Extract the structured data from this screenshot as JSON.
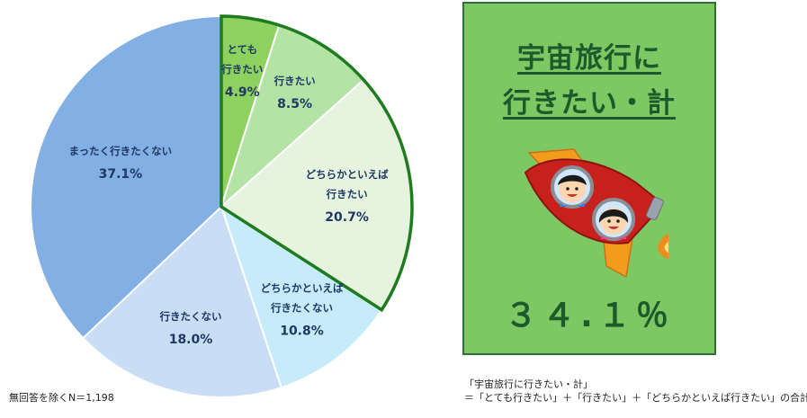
{
  "chart_data": {
    "type": "pie",
    "title": "",
    "start": "top",
    "direction": "clockwise",
    "slices": [
      {
        "label": [
          "とても",
          "行きたい"
        ],
        "value": 4.9,
        "value_label": "4.9%",
        "color": "#8dd15f"
      },
      {
        "label": [
          "行きたい"
        ],
        "value": 8.5,
        "value_label": "8.5%",
        "color": "#b4e3a6"
      },
      {
        "label": [
          "どちらかといえば",
          "行きたい"
        ],
        "value": 20.7,
        "value_label": "20.7%",
        "color": "#e6f4df"
      },
      {
        "label": [
          "どちらかといえば",
          "行きたくない"
        ],
        "value": 10.8,
        "value_label": "10.8%",
        "color": "#c6ecfb"
      },
      {
        "label": [
          "行きたくない"
        ],
        "value": 18.0,
        "value_label": "18.0%",
        "color": "#c9ddf5"
      },
      {
        "label": [
          "まったく行きたくない"
        ],
        "value": 37.1,
        "value_label": "37.1%",
        "color": "#82b0e4"
      }
    ],
    "highlight_group": [
      0,
      1,
      2
    ],
    "highlight_color": "#1e7b1e"
  },
  "sample_note": "無回答を除くN＝1,198",
  "summary": {
    "title_lines": [
      "宇宙旅行に",
      "行きたい・計"
    ],
    "value": "３４.１％"
  },
  "definition": {
    "line1": "「宇宙旅行に行きたい・計」",
    "line2": "＝「とても行きたい」＋「行きたい」＋「どちらかといえば行きたい」の合計"
  },
  "colors": {
    "panel_bg": "#7ec863",
    "panel_border": "#2f6e3a",
    "panel_text": "#1a5a2b",
    "label_text": "#1f3864"
  },
  "icons": [
    "rocket-icon",
    "boy-astronaut-icon",
    "girl-astronaut-icon"
  ]
}
